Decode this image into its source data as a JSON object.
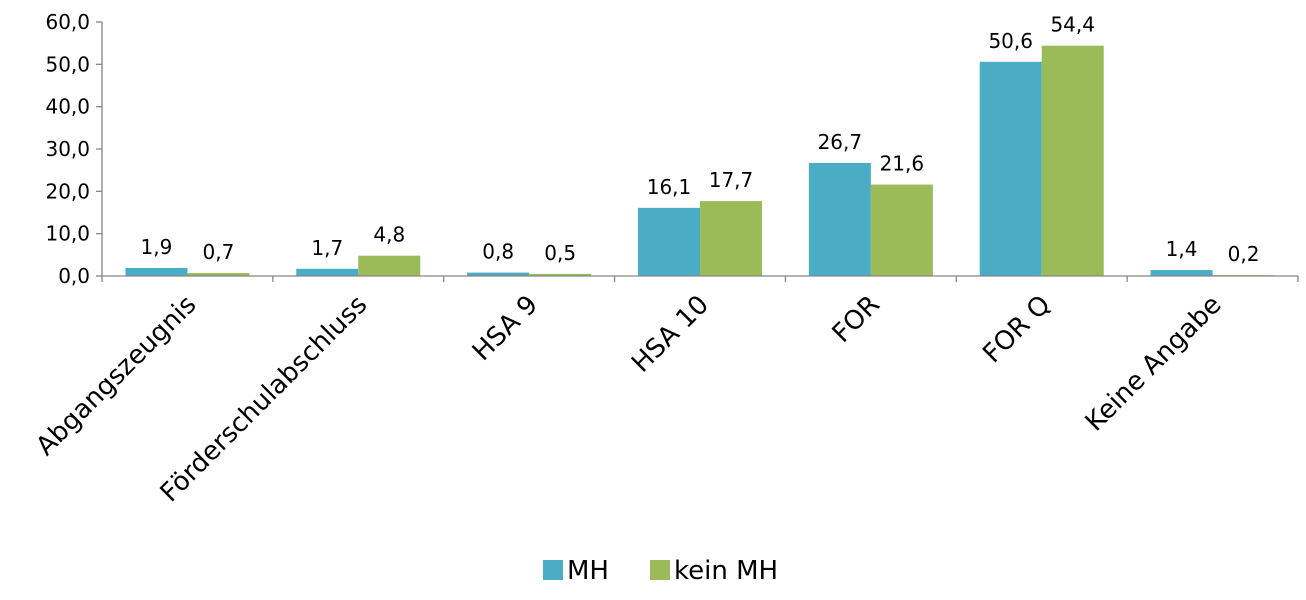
{
  "chart_data": {
    "type": "bar",
    "categories": [
      "Abgangszeugnis",
      "Förderschulabschluss",
      "HSA 9",
      "HSA 10",
      "FOR",
      "FOR Q",
      "Keine Angabe"
    ],
    "series": [
      {
        "name": "MH",
        "values": [
          1.9,
          1.7,
          0.8,
          16.1,
          26.7,
          50.6,
          1.4
        ],
        "value_labels": [
          "1,9",
          "1,7",
          "0,8",
          "16,1",
          "26,7",
          "50,6",
          "1,4"
        ],
        "color": "#4BACC6"
      },
      {
        "name": "kein MH",
        "values": [
          0.7,
          4.8,
          0.5,
          17.7,
          21.6,
          54.4,
          0.2
        ],
        "value_labels": [
          "0,7",
          "4,8",
          "0,5",
          "17,7",
          "21,6",
          "54,4",
          "0,2"
        ],
        "color": "#9BBB59"
      }
    ],
    "ylim": [
      0,
      60
    ],
    "y_ticks": [
      0,
      10,
      20,
      30,
      40,
      50,
      60
    ],
    "y_tick_labels": [
      "0,0",
      "10,0",
      "20,0",
      "30,0",
      "40,0",
      "50,0",
      "60,0"
    ],
    "grid": false,
    "legend_position": "bottom",
    "title": "",
    "xlabel": "",
    "ylabel": ""
  }
}
